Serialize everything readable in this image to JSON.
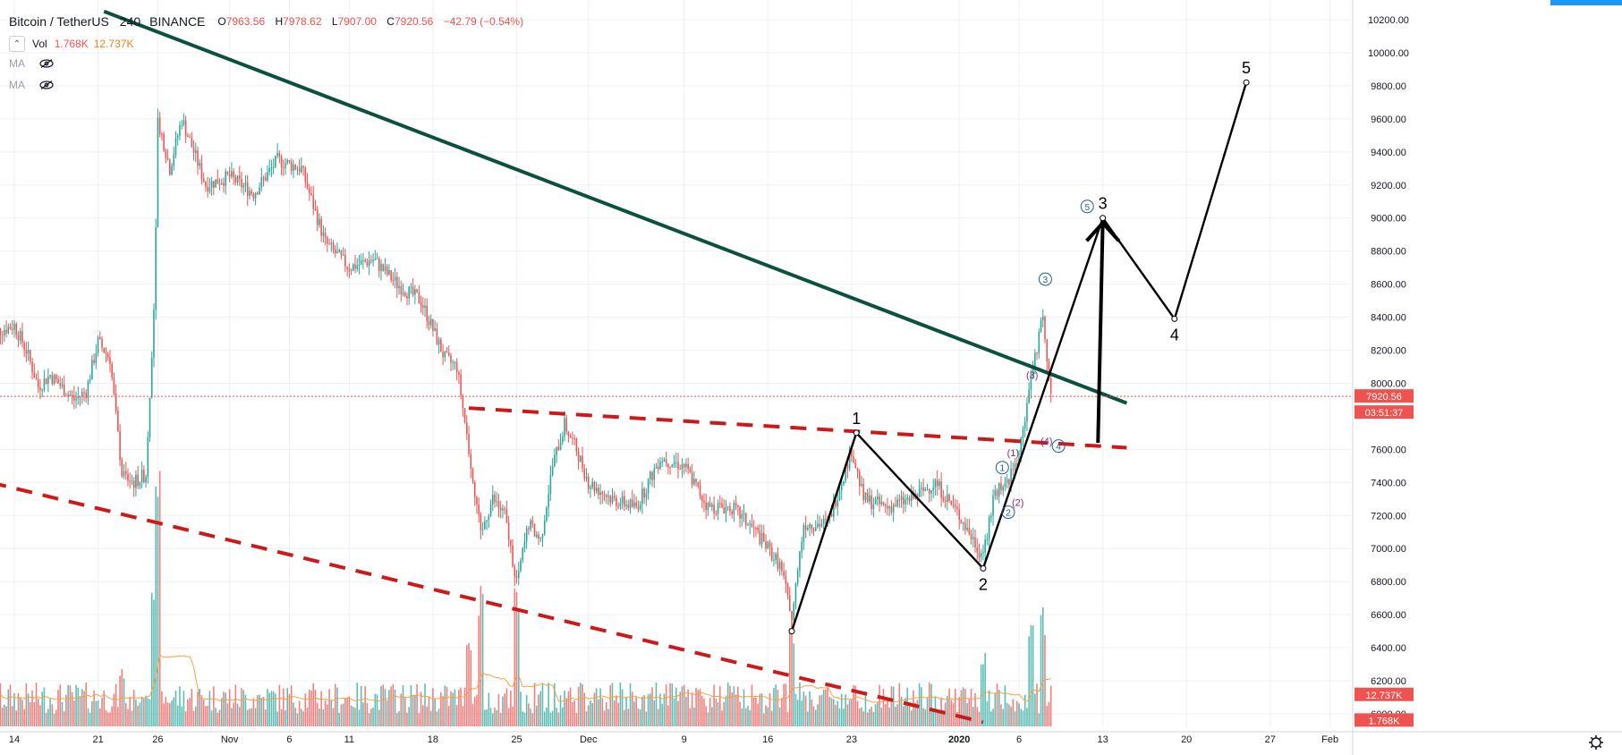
{
  "header": {
    "symbol": "Bitcoin / TetherUS",
    "interval": "240",
    "exchange": "BINANCE",
    "ohlc": [
      {
        "label": "O",
        "value": "7963.56"
      },
      {
        "label": "H",
        "value": "7978.62"
      },
      {
        "label": "L",
        "value": "7907.00"
      },
      {
        "label": "C",
        "value": "7920.56"
      }
    ],
    "change": "−42.79 (−0.54%)"
  },
  "indicators": {
    "vol_label": "Vol",
    "vol_value": "1.768K",
    "vol_ma": "12.737K",
    "ma1_label": "MA",
    "ma2_label": "MA"
  },
  "chart_data": {
    "type": "candlestick",
    "title": "Bitcoin / TetherUS 240 BINANCE",
    "ylim": [
      5900,
      10250
    ],
    "y_ticks": [
      "10200.00",
      "10000.00",
      "9800.00",
      "9600.00",
      "9400.00",
      "9200.00",
      "9000.00",
      "8800.00",
      "8600.00",
      "8400.00",
      "8200.00",
      "8000.00",
      "7600.00",
      "7400.00",
      "7200.00",
      "7000.00",
      "6800.00",
      "6600.00",
      "6400.00",
      "6200.00",
      "6000.00"
    ],
    "x_ticks": [
      {
        "label": "14",
        "date": "2019-10-14"
      },
      {
        "label": "21",
        "date": "2019-10-21"
      },
      {
        "label": "26",
        "date": "2019-10-26"
      },
      {
        "label": "Nov",
        "date": "2019-11-01"
      },
      {
        "label": "6",
        "date": "2019-11-06"
      },
      {
        "label": "11",
        "date": "2019-11-11"
      },
      {
        "label": "18",
        "date": "2019-11-18"
      },
      {
        "label": "25",
        "date": "2019-11-25"
      },
      {
        "label": "Dec",
        "date": "2019-12-01"
      },
      {
        "label": "9",
        "date": "2019-12-09"
      },
      {
        "label": "16",
        "date": "2019-12-16"
      },
      {
        "label": "23",
        "date": "2019-12-23"
      },
      {
        "label": "2020",
        "date": "2020-01-01"
      },
      {
        "label": "6",
        "date": "2020-01-06"
      },
      {
        "label": "13",
        "date": "2020-01-13"
      },
      {
        "label": "20",
        "date": "2020-01-20"
      },
      {
        "label": "27",
        "date": "2020-01-27"
      },
      {
        "label": "Feb",
        "date": "2020-02-01"
      }
    ],
    "last_price": {
      "value": 7920.56,
      "label": "7920.56",
      "countdown": "03:51:37",
      "color": "#ef5350"
    },
    "volume_badges": [
      {
        "value_label": "12.737K",
        "price": 6115,
        "color": "#ef5350"
      },
      {
        "value_label": "1.768K",
        "price": 5960,
        "color": "#ef5350"
      }
    ],
    "price_path": [
      {
        "date": "2019-10-12",
        "price": 8300
      },
      {
        "date": "2019-10-14",
        "price": 8350
      },
      {
        "date": "2019-10-15",
        "price": 8200
      },
      {
        "date": "2019-10-16",
        "price": 7980
      },
      {
        "date": "2019-10-17",
        "price": 8050
      },
      {
        "date": "2019-10-19",
        "price": 7900
      },
      {
        "date": "2019-10-20",
        "price": 7950
      },
      {
        "date": "2019-10-21",
        "price": 8250
      },
      {
        "date": "2019-10-22",
        "price": 8150
      },
      {
        "date": "2019-10-23",
        "price": 7450
      },
      {
        "date": "2019-10-24",
        "price": 7400
      },
      {
        "date": "2019-10-25",
        "price": 7450
      },
      {
        "date": "2019-10-25.7",
        "price": 8500
      },
      {
        "date": "2019-10-26",
        "price": 9600
      },
      {
        "date": "2019-10-27",
        "price": 9300
      },
      {
        "date": "2019-10-28",
        "price": 9600
      },
      {
        "date": "2019-10-30",
        "price": 9200
      },
      {
        "date": "2019-11-01",
        "price": 9250
      },
      {
        "date": "2019-11-03",
        "price": 9150
      },
      {
        "date": "2019-11-05",
        "price": 9350
      },
      {
        "date": "2019-11-07",
        "price": 9300
      },
      {
        "date": "2019-11-09",
        "price": 8850
      },
      {
        "date": "2019-11-11",
        "price": 8700
      },
      {
        "date": "2019-11-13",
        "price": 8750
      },
      {
        "date": "2019-11-15",
        "price": 8600
      },
      {
        "date": "2019-11-17",
        "price": 8500
      },
      {
        "date": "2019-11-19",
        "price": 8150
      },
      {
        "date": "2019-11-20",
        "price": 8100
      },
      {
        "date": "2019-11-21",
        "price": 7600
      },
      {
        "date": "2019-11-22",
        "price": 7100
      },
      {
        "date": "2019-11-23",
        "price": 7300
      },
      {
        "date": "2019-11-24",
        "price": 7200
      },
      {
        "date": "2019-11-25",
        "price": 6800
      },
      {
        "date": "2019-11-26",
        "price": 7150
      },
      {
        "date": "2019-11-27",
        "price": 7050
      },
      {
        "date": "2019-11-28",
        "price": 7500
      },
      {
        "date": "2019-11-29",
        "price": 7750
      },
      {
        "date": "2019-11-30",
        "price": 7600
      },
      {
        "date": "2019-12-01",
        "price": 7400
      },
      {
        "date": "2019-12-03",
        "price": 7300
      },
      {
        "date": "2019-12-05",
        "price": 7250
      },
      {
        "date": "2019-12-07",
        "price": 7550
      },
      {
        "date": "2019-12-09",
        "price": 7500
      },
      {
        "date": "2019-12-11",
        "price": 7250
      },
      {
        "date": "2019-12-13",
        "price": 7250
      },
      {
        "date": "2019-12-15",
        "price": 7100
      },
      {
        "date": "2019-12-17",
        "price": 6900
      },
      {
        "date": "2019-12-18",
        "price": 6600
      },
      {
        "date": "2019-12-19",
        "price": 7150
      },
      {
        "date": "2019-12-21",
        "price": 7150
      },
      {
        "date": "2019-12-23",
        "price": 7600
      },
      {
        "date": "2019-12-24",
        "price": 7300
      },
      {
        "date": "2019-12-26",
        "price": 7250
      },
      {
        "date": "2019-12-28",
        "price": 7300
      },
      {
        "date": "2019-12-30",
        "price": 7400
      },
      {
        "date": "2020-01-01",
        "price": 7200
      },
      {
        "date": "2020-01-03",
        "price": 6950
      },
      {
        "date": "2020-01-04",
        "price": 7350
      },
      {
        "date": "2020-01-05",
        "price": 7400
      },
      {
        "date": "2020-01-06",
        "price": 7550
      },
      {
        "date": "2020-01-07",
        "price": 8050
      },
      {
        "date": "2020-01-08",
        "price": 8400
      },
      {
        "date": "2020-01-08.7",
        "price": 7920.56
      }
    ],
    "volume_spikes": [
      {
        "date": "2019-10-23",
        "volume": 0.25
      },
      {
        "date": "2019-10-25.7",
        "volume": 0.65
      },
      {
        "date": "2019-10-26",
        "volume": 1.0
      },
      {
        "date": "2019-11-21",
        "volume": 0.4
      },
      {
        "date": "2019-11-22",
        "volume": 0.55
      },
      {
        "date": "2019-11-25",
        "volume": 0.6
      },
      {
        "date": "2019-12-18",
        "volume": 0.45
      },
      {
        "date": "2020-01-03",
        "volume": 0.3
      },
      {
        "date": "2020-01-07",
        "volume": 0.45
      },
      {
        "date": "2020-01-08",
        "volume": 0.5
      }
    ],
    "trendlines": [
      {
        "name": "descending-resistance",
        "style": "solid",
        "color": "#0d5040",
        "points": [
          {
            "date": "2019-10-21.5",
            "price": 10250
          },
          {
            "date": "2020-01-15",
            "price": 7880
          }
        ]
      },
      {
        "name": "lower-channel",
        "style": "dashed",
        "color": "#cc1a1a",
        "points": [
          {
            "date": "2019-10-12",
            "price": 7400
          },
          {
            "date": "2020-01-03",
            "price": 5950
          }
        ]
      },
      {
        "name": "neckline",
        "style": "dashed",
        "color": "#cc1a1a",
        "points": [
          {
            "date": "2019-11-21",
            "price": 7850
          },
          {
            "date": "2020-01-15",
            "price": 7610
          }
        ]
      }
    ],
    "wave_projection": {
      "color": "#000000",
      "points": [
        {
          "label": "",
          "date": "2019-12-18",
          "price": 6500
        },
        {
          "label": "1",
          "date": "2019-12-23.4",
          "price": 7700
        },
        {
          "label": "2",
          "date": "2020-01-03",
          "price": 6880
        },
        {
          "label": "3",
          "date": "2020-01-13",
          "price": 9000
        },
        {
          "label": "4",
          "date": "2020-01-19",
          "price": 8390
        },
        {
          "label": "5",
          "date": "2020-01-25",
          "price": 9820
        }
      ],
      "arrow": {
        "from": {
          "date": "2020-01-12.6",
          "price": 7640
        },
        "to": {
          "date": "2020-01-13",
          "price": 8970
        }
      }
    },
    "circle_labels": [
      {
        "label": "5",
        "date": "2020-01-11.7",
        "price": 9070,
        "color": "#1f5fa0"
      },
      {
        "label": "3",
        "date": "2020-01-08.2",
        "price": 8630,
        "color": "#1f5fa0"
      },
      {
        "label": "1",
        "date": "2020-01-04.6",
        "price": 7490,
        "color": "#1f5fa0"
      },
      {
        "label": "2",
        "date": "2020-01-05.1",
        "price": 7220,
        "color": "#1f5fa0"
      },
      {
        "label": "4",
        "date": "2020-01-09.3",
        "price": 7620,
        "color": "#1f5fa0"
      }
    ],
    "paren_labels": [
      {
        "label": "(3)",
        "date": "2020-01-07.1",
        "price": 8050,
        "color": "#7b2d8b"
      },
      {
        "label": "(1)",
        "date": "2020-01-05.5",
        "price": 7580,
        "color": "#7b2d8b"
      },
      {
        "label": "(2)",
        "date": "2020-01-05.9",
        "price": 7280,
        "color": "#7b2d8b"
      },
      {
        "label": "(4)",
        "date": "2020-01-08.3",
        "price": 7650,
        "color": "#7b2d8b"
      }
    ]
  }
}
